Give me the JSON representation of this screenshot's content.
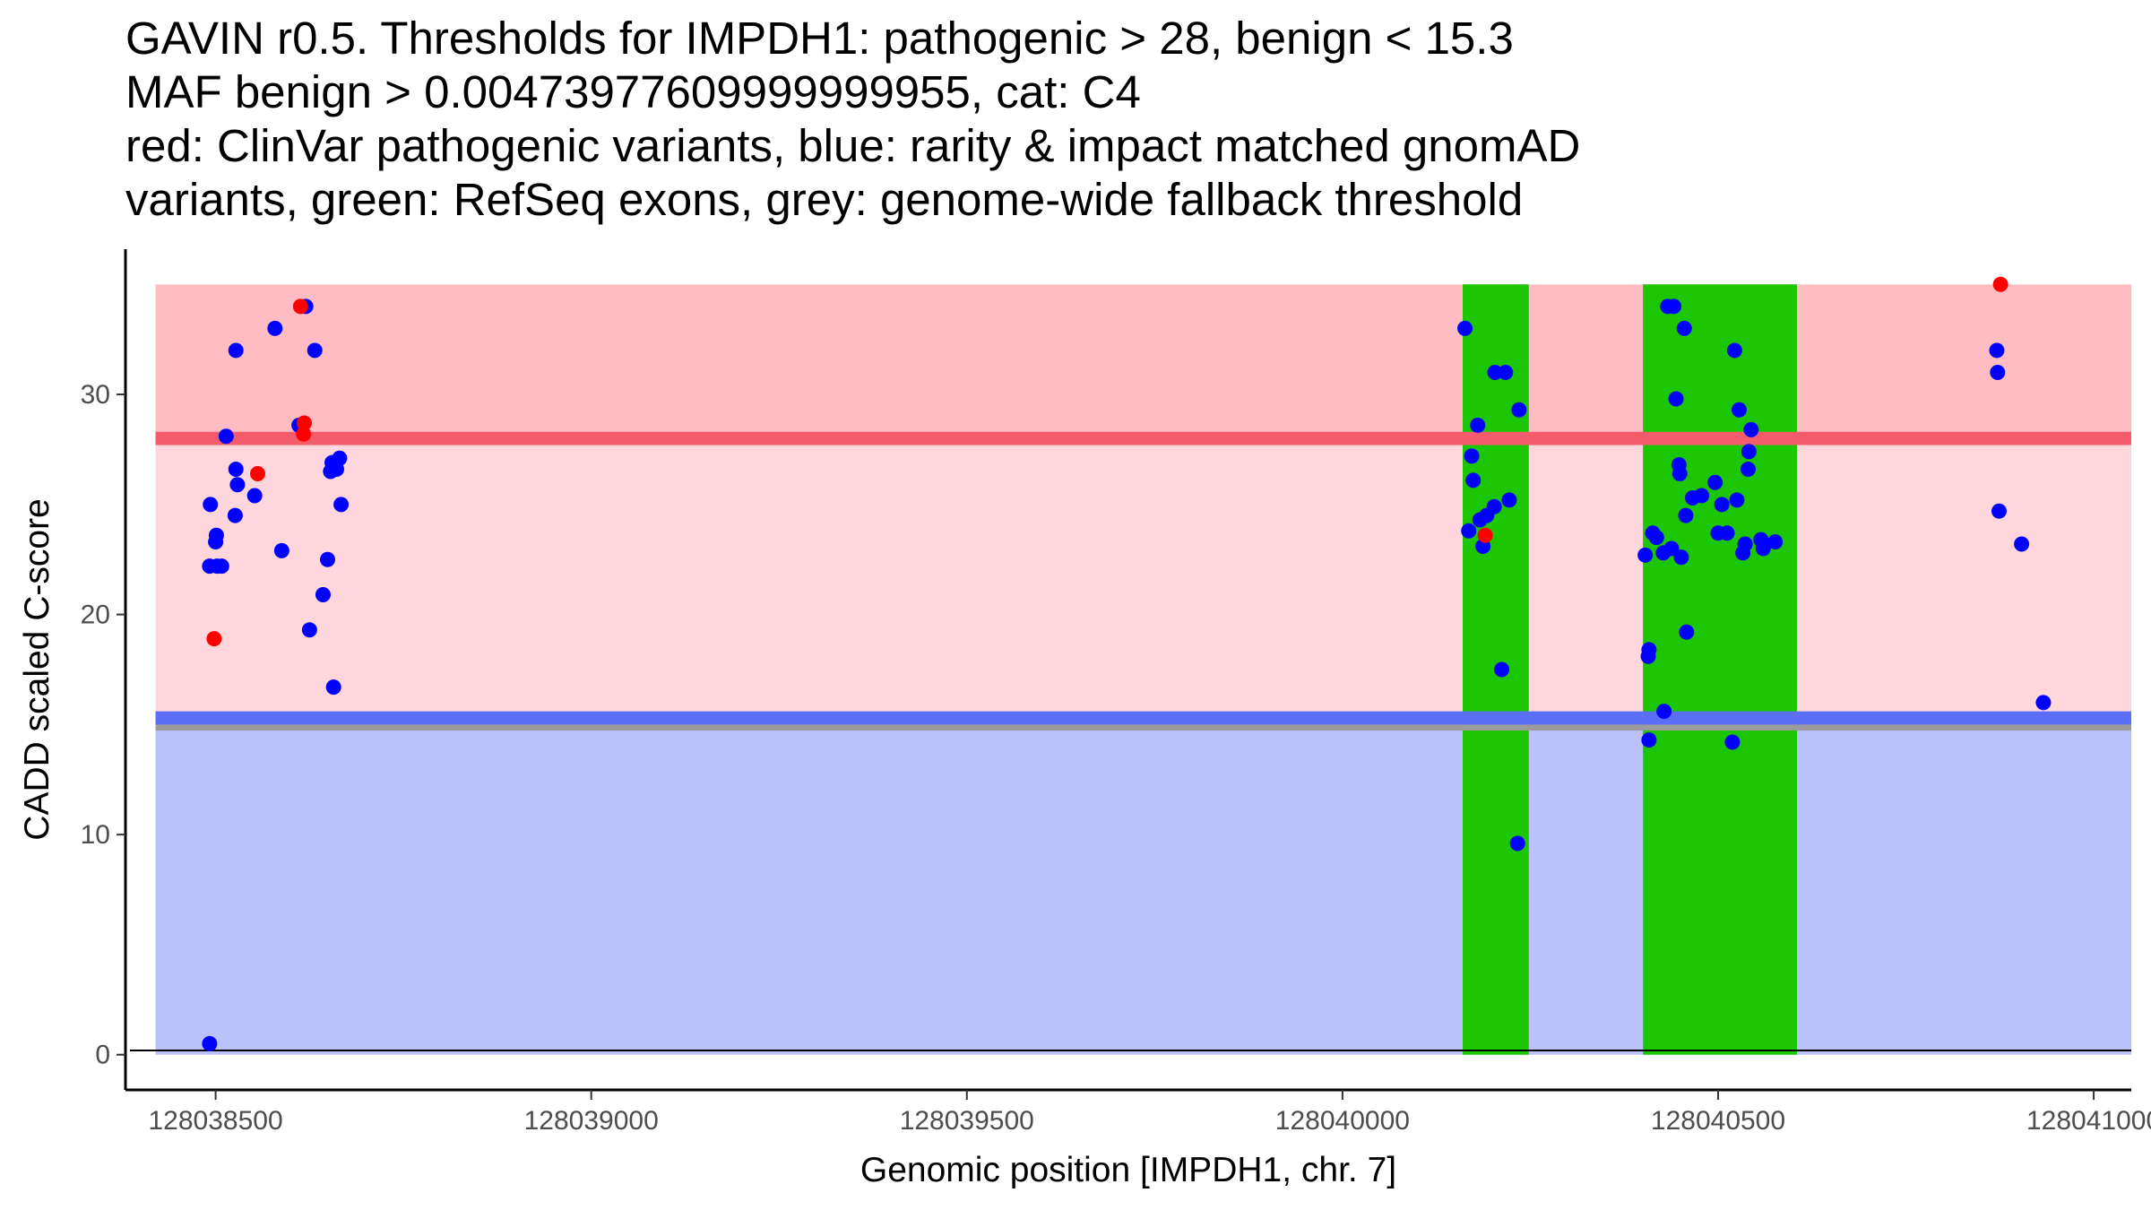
{
  "chart_data": {
    "type": "scatter",
    "title_lines": [
      "GAVIN r0.5. Thresholds for IMPDH1: pathogenic > 28, benign < 15.3",
      "MAF benign > 0.00473977609999999955, cat: C4",
      "red: ClinVar pathogenic variants, blue: rarity & impact matched gnomAD",
      "variants, green: RefSeq exons, grey: genome-wide fallback threshold"
    ],
    "xlabel": "Genomic position [IMPDH1, chr. 7]",
    "ylabel": "CADD scaled C-score",
    "xlim": [
      128038380,
      128041050
    ],
    "ylim": [
      -1.6,
      36.6
    ],
    "x_ticks": [
      128038500,
      128039000,
      128039500,
      128040000,
      128040500,
      128041000
    ],
    "x_tick_labels": [
      "128038500",
      "128039000",
      "128039500",
      "128040000",
      "128040500",
      "128041000"
    ],
    "y_ticks": [
      0,
      10,
      20,
      30
    ],
    "y_tick_labels": [
      "0",
      "10",
      "20",
      "30"
    ],
    "grid": false,
    "bands": [
      {
        "name": "pathogenic-region",
        "x0": 128038420,
        "x1": 128041060,
        "y0": 28,
        "y1": 35,
        "color": "#ffbcc3"
      },
      {
        "name": "intermediate-region",
        "x0": 128038420,
        "x1": 128041060,
        "y0": 15.3,
        "y1": 28,
        "color": "#ffd6dc"
      },
      {
        "name": "benign-region",
        "x0": 128038420,
        "x1": 128041060,
        "y0": 0,
        "y1": 15.3,
        "color": "#bbc1fb"
      }
    ],
    "threshold_lines": [
      {
        "name": "fallback-threshold-line",
        "y": 14.9,
        "thickness": 0.35,
        "color": "#9b9b9b"
      },
      {
        "name": "benign-threshold-line",
        "y": 15.3,
        "thickness": 0.6,
        "color": "#5b6ef8"
      },
      {
        "name": "pathogenic-threshold-line",
        "y": 28.0,
        "thickness": 0.6,
        "color": "#f55c6b"
      }
    ],
    "exons": [
      {
        "x0": 128040160,
        "x1": 128040248
      },
      {
        "x0": 128040400,
        "x1": 128040605
      }
    ],
    "exon_color": "#1cc600",
    "series": [
      {
        "name": "gnomAD variants",
        "color": "#0000ff",
        "points": [
          [
            128038493,
            25.0
          ],
          [
            128038492,
            22.2
          ],
          [
            128038500,
            23.3
          ],
          [
            128038501,
            23.6
          ],
          [
            128038502,
            22.2
          ],
          [
            128038508,
            22.2
          ],
          [
            128038514,
            28.1
          ],
          [
            128038527,
            32.0
          ],
          [
            128038526,
            24.5
          ],
          [
            128038527,
            26.6
          ],
          [
            128038529,
            25.9
          ],
          [
            128038552,
            25.4
          ],
          [
            128038579,
            33.0
          ],
          [
            128038588,
            22.9
          ],
          [
            128038611,
            28.6
          ],
          [
            128038620,
            34.0
          ],
          [
            128038625,
            19.3
          ],
          [
            128038632,
            32.0
          ],
          [
            128038643,
            20.9
          ],
          [
            128038649,
            22.5
          ],
          [
            128038653,
            26.5
          ],
          [
            128038655,
            26.9
          ],
          [
            128038657,
            16.7
          ],
          [
            128038661,
            26.6
          ],
          [
            128038665,
            27.1
          ],
          [
            128038667,
            25.0
          ],
          [
            128038492,
            0.5
          ],
          [
            128040163,
            33.0
          ],
          [
            128040168,
            23.8
          ],
          [
            128040172,
            27.2
          ],
          [
            128040174,
            26.1
          ],
          [
            128040180,
            28.6
          ],
          [
            128040183,
            24.3
          ],
          [
            128040187,
            23.1
          ],
          [
            128040192,
            24.5
          ],
          [
            128040202,
            24.9
          ],
          [
            128040203,
            31.0
          ],
          [
            128040212,
            17.5
          ],
          [
            128040217,
            31.0
          ],
          [
            128040222,
            25.2
          ],
          [
            128040235,
            29.3
          ],
          [
            128040233,
            9.6
          ],
          [
            128040403,
            22.7
          ],
          [
            128040408,
            18.4
          ],
          [
            128040407,
            18.1
          ],
          [
            128040408,
            14.3
          ],
          [
            128040413,
            23.7
          ],
          [
            128040418,
            23.5
          ],
          [
            128040427,
            22.8
          ],
          [
            128040428,
            15.6
          ],
          [
            128040433,
            34.0
          ],
          [
            128040438,
            23.0
          ],
          [
            128040441,
            34.0
          ],
          [
            128040444,
            29.8
          ],
          [
            128040448,
            26.8
          ],
          [
            128040449,
            26.4
          ],
          [
            128040451,
            22.6
          ],
          [
            128040455,
            33.0
          ],
          [
            128040457,
            24.5
          ],
          [
            128040458,
            19.2
          ],
          [
            128040466,
            25.3
          ],
          [
            128040478,
            25.4
          ],
          [
            128040496,
            26.0
          ],
          [
            128040500,
            23.7
          ],
          [
            128040505,
            25.0
          ],
          [
            128040512,
            23.7
          ],
          [
            128040519,
            14.2
          ],
          [
            128040522,
            32.0
          ],
          [
            128040525,
            25.2
          ],
          [
            128040528,
            29.3
          ],
          [
            128040533,
            22.8
          ],
          [
            128040536,
            23.2
          ],
          [
            128040540,
            26.6
          ],
          [
            128040541,
            27.4
          ],
          [
            128040544,
            28.4
          ],
          [
            128040557,
            23.4
          ],
          [
            128040560,
            23.0
          ],
          [
            128040576,
            23.3
          ],
          [
            128040871,
            32.0
          ],
          [
            128040872,
            31.0
          ],
          [
            128040874,
            24.7
          ],
          [
            128040904,
            23.2
          ],
          [
            128040933,
            16.0
          ]
        ]
      },
      {
        "name": "ClinVar pathogenic variants",
        "color": "#ff0000",
        "points": [
          [
            128038498,
            18.9
          ],
          [
            128038556,
            26.4
          ],
          [
            128038613,
            34.0
          ],
          [
            128038617,
            28.2
          ],
          [
            128038618,
            28.7
          ],
          [
            128040190,
            23.6
          ],
          [
            128040876,
            35.0
          ]
        ]
      }
    ]
  }
}
